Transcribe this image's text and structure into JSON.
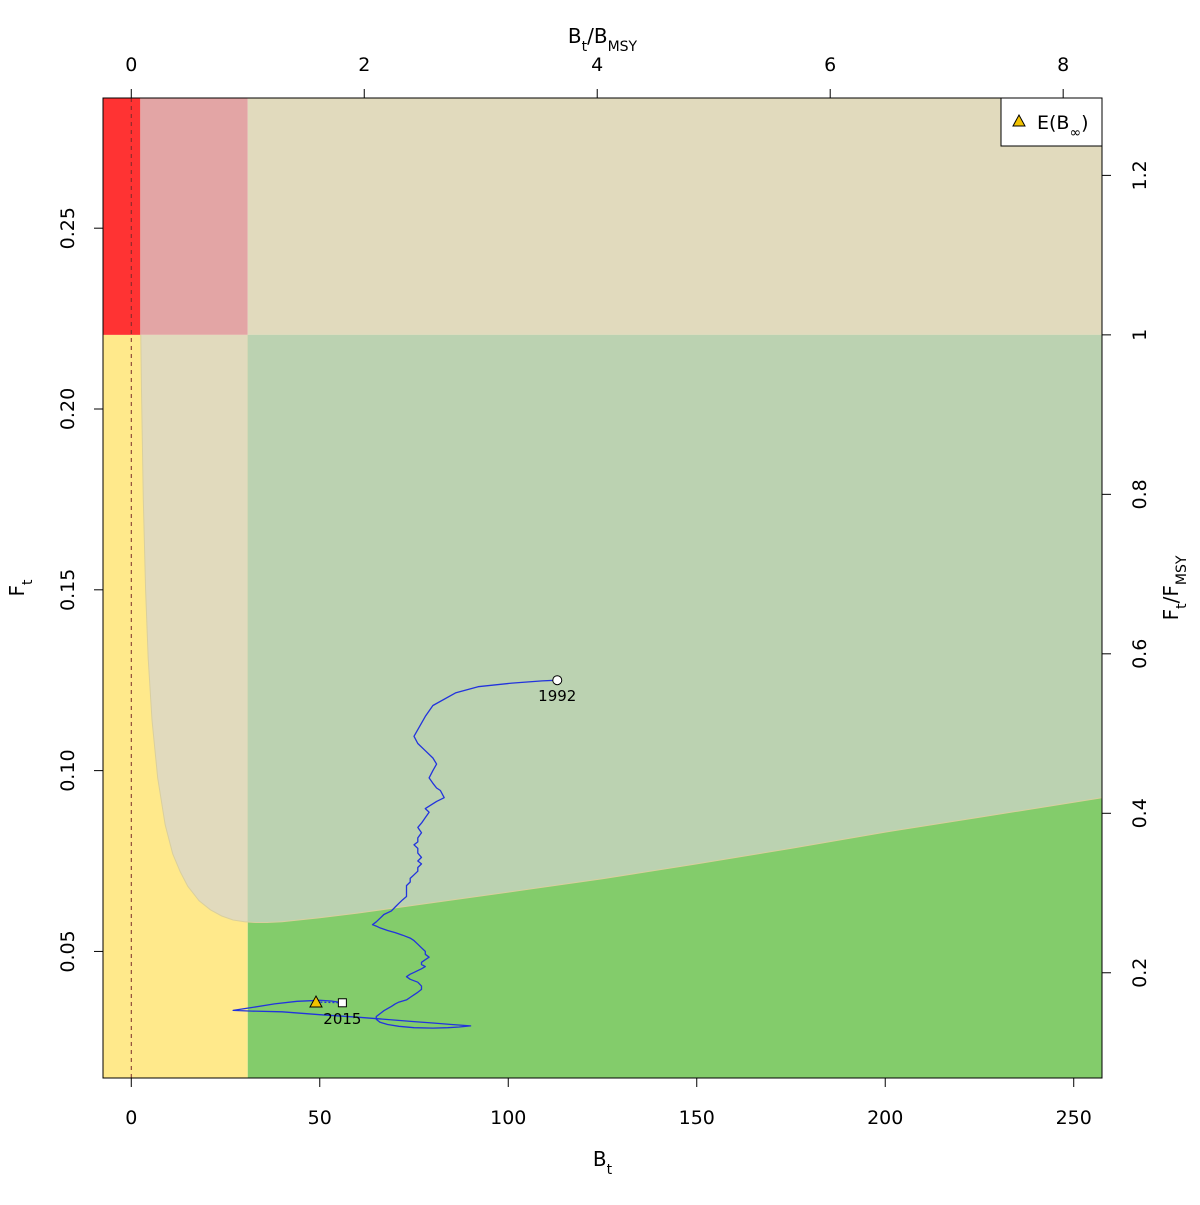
{
  "chart_data": {
    "type": "line",
    "title": "",
    "xlabel": {
      "base": "B",
      "sub": "t"
    },
    "ylabel": {
      "base": "F",
      "sub": "t"
    },
    "x2label": {
      "base": "B",
      "sub": "t",
      "sep": "/",
      "base2": "B",
      "sub2": "MSY"
    },
    "y2label": {
      "base": "F",
      "sub": "t",
      "sep": "/",
      "base2": "F",
      "sub2": "MSY"
    },
    "xlim": [
      -7.5,
      257.5
    ],
    "ylim": [
      0.015,
      0.286
    ],
    "xticks": [
      0,
      50,
      100,
      150,
      200,
      250
    ],
    "xtick_labels": [
      "0",
      "50",
      "100",
      "150",
      "200",
      "250"
    ],
    "yticks": [
      0.05,
      0.1,
      0.15,
      0.2,
      0.25
    ],
    "ytick_labels": [
      "0.05",
      "0.10",
      "0.15",
      "0.20",
      "0.25"
    ],
    "x2ticks": [
      0,
      2,
      4,
      6,
      8
    ],
    "x2tick_labels": [
      "0",
      "2",
      "4",
      "6",
      "8"
    ],
    "y2ticks": [
      0.2,
      0.4,
      0.6,
      0.8,
      1,
      1.2
    ],
    "y2tick_labels": [
      "0.2",
      "0.4",
      "0.6",
      "0.8",
      "1",
      "1.2"
    ],
    "BMSY": 30.9,
    "FMSY": 0.2205,
    "Bpoint_red": 2.4,
    "reference_line_x": 0,
    "grid": false,
    "legend": {
      "position": "top-right",
      "label_base": "E(B",
      "label_sub": "∞",
      "label_close": ")"
    },
    "regions": {
      "red": "#ff3333",
      "pink": "#e3a5a5",
      "tan": "#e1dabd",
      "yellow": "#ffe98b",
      "light_green": "#bbd2b1",
      "green": "#83cc6b"
    },
    "yield_curve": {
      "x": [
        2.0,
        2.3,
        2.7,
        3.2,
        3.8,
        4.5,
        5.5,
        7,
        9,
        11,
        13,
        15,
        18,
        21,
        24,
        27,
        30,
        33,
        36,
        40,
        50,
        60,
        80,
        100,
        125,
        150,
        175,
        200,
        225,
        257.5
      ],
      "y": [
        0.286,
        0.24,
        0.205,
        0.175,
        0.15,
        0.131,
        0.114,
        0.098,
        0.085,
        0.077,
        0.072,
        0.068,
        0.064,
        0.0615,
        0.0598,
        0.0587,
        0.0582,
        0.058,
        0.058,
        0.0582,
        0.0593,
        0.0606,
        0.0635,
        0.0664,
        0.0701,
        0.0742,
        0.0785,
        0.083,
        0.0871,
        0.0925
      ]
    },
    "series": [
      {
        "color": "#2233dd",
        "x": [
          113,
          109,
          101,
          92,
          86,
          80,
          78,
          75,
          76,
          78,
          80,
          81,
          80,
          79,
          80,
          81,
          82,
          83,
          81,
          78,
          79,
          78,
          77,
          76,
          77,
          76,
          76,
          75,
          76,
          76,
          77,
          76,
          77,
          76,
          76,
          75,
          74,
          74,
          73,
          73,
          73,
          73,
          72,
          71,
          70,
          69,
          67,
          66,
          65,
          64,
          65,
          66,
          68,
          70,
          72,
          74,
          75,
          76,
          77,
          78,
          78,
          79,
          78,
          77,
          77,
          78,
          77,
          76,
          75,
          74,
          73,
          74,
          76,
          77,
          77,
          76,
          75,
          74,
          73,
          71,
          70,
          69,
          68,
          67,
          66,
          65,
          65,
          66,
          68,
          71,
          75,
          80,
          84,
          87,
          90,
          85,
          80,
          75,
          70,
          60,
          50,
          40,
          32,
          27,
          32,
          38,
          44,
          50,
          53,
          55,
          56
        ],
        "y": [
          0.125,
          0.1248,
          0.1242,
          0.1232,
          0.1215,
          0.118,
          0.115,
          0.1095,
          0.1075,
          0.1055,
          0.1035,
          0.1018,
          0.1,
          0.098,
          0.0965,
          0.0952,
          0.0945,
          0.0925,
          0.0915,
          0.0895,
          0.0885,
          0.087,
          0.0855,
          0.0843,
          0.0828,
          0.0814,
          0.0803,
          0.0795,
          0.0785,
          0.0772,
          0.076,
          0.075,
          0.0742,
          0.0732,
          0.0722,
          0.0712,
          0.0702,
          0.0692,
          0.0682,
          0.0672,
          0.0662,
          0.0652,
          0.0643,
          0.0633,
          0.0623,
          0.0612,
          0.0602,
          0.0592,
          0.0582,
          0.0574,
          0.057,
          0.0565,
          0.0558,
          0.0552,
          0.0545,
          0.0537,
          0.053,
          0.052,
          0.051,
          0.05,
          0.0492,
          0.0484,
          0.0477,
          0.047,
          0.0464,
          0.0458,
          0.0452,
          0.0447,
          0.0442,
          0.0437,
          0.043,
          0.0423,
          0.0415,
          0.0404,
          0.0395,
          0.0387,
          0.038,
          0.0373,
          0.0366,
          0.036,
          0.0355,
          0.0348,
          0.0342,
          0.0336,
          0.0328,
          0.032,
          0.0312,
          0.0304,
          0.0298,
          0.0293,
          0.0289,
          0.0288,
          0.0289,
          0.0291,
          0.0294,
          0.0298,
          0.0302,
          0.0306,
          0.031,
          0.0318,
          0.0325,
          0.0333,
          0.0335,
          0.0337,
          0.0345,
          0.0355,
          0.0362,
          0.0365,
          0.0363,
          0.036,
          0.0358
        ]
      }
    ],
    "points": [
      {
        "name": "start",
        "label": "1992",
        "x": 113,
        "y": 0.125,
        "shape": "circle",
        "fill": "#ffffff"
      },
      {
        "name": "end",
        "label": "2015",
        "x": 56,
        "y": 0.0358,
        "shape": "square",
        "fill": "#ffffff"
      },
      {
        "name": "expected",
        "label": "",
        "x": 49,
        "y": 0.036,
        "shape": "triangle",
        "fill": "#f2c200"
      }
    ],
    "expected_link_color": "#2233dd"
  }
}
